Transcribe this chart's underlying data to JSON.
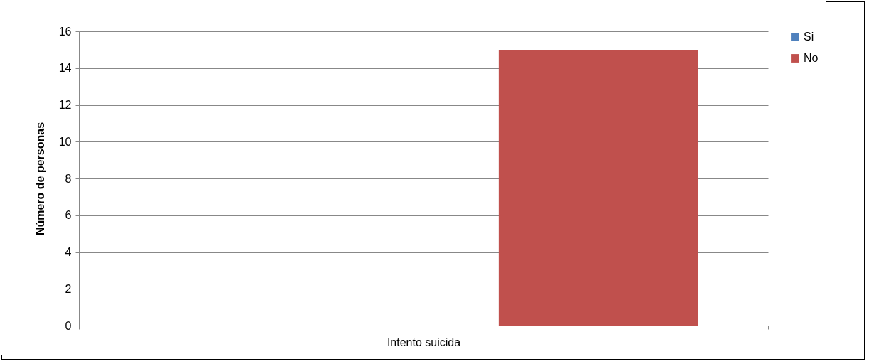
{
  "chart_data": {
    "type": "bar",
    "ylabel": "Número de personas",
    "categories": [
      "Intento suicida"
    ],
    "series": [
      {
        "name": "Si",
        "color": "#4f81bd",
        "values": [
          0
        ]
      },
      {
        "name": "No",
        "color": "#c0504d",
        "values": [
          15
        ]
      }
    ],
    "ylim": [
      0,
      16
    ],
    "yticks": [
      0,
      2,
      4,
      6,
      8,
      10,
      12,
      14,
      16
    ],
    "grid": "y",
    "legend": "right"
  }
}
